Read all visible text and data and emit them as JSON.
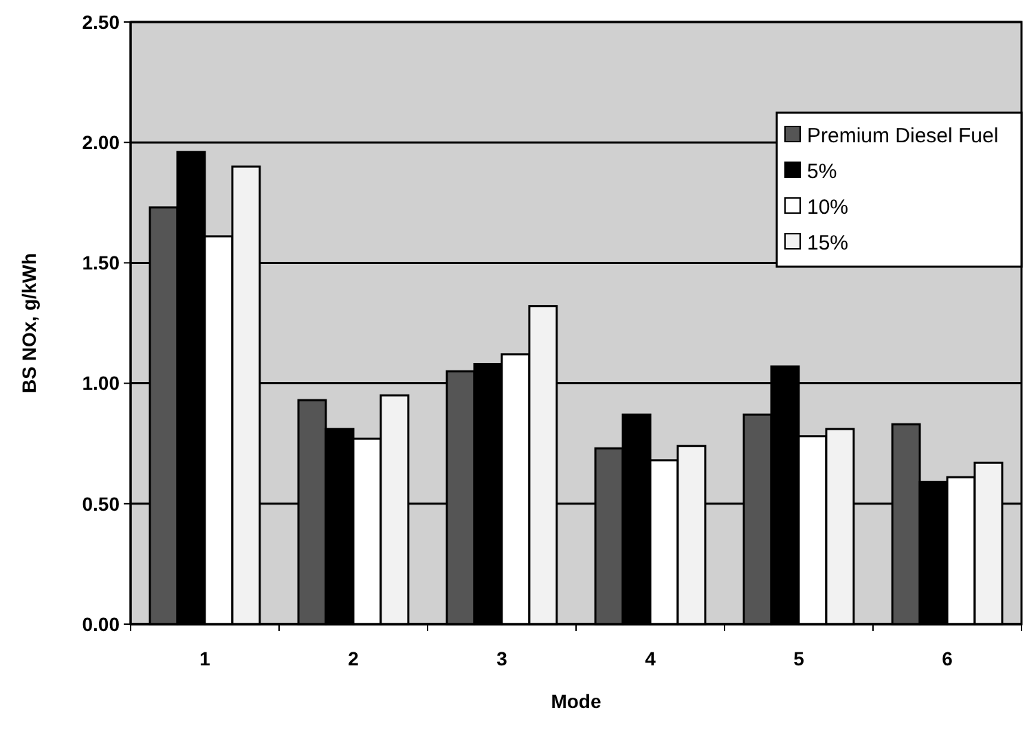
{
  "chart_data": {
    "type": "bar",
    "xlabel": "Mode",
    "ylabel": "BS NOx, g/kWh",
    "categories": [
      "1",
      "2",
      "3",
      "4",
      "5",
      "6"
    ],
    "series": [
      {
        "name": "Premium Diesel Fuel",
        "color": "#555555",
        "values": [
          1.73,
          0.93,
          1.05,
          0.73,
          0.87,
          0.83
        ]
      },
      {
        "name": "5%",
        "color": "#000000",
        "values": [
          1.96,
          0.81,
          1.08,
          0.87,
          1.07,
          0.59
        ]
      },
      {
        "name": "10%",
        "color": "#ffffff",
        "values": [
          1.61,
          0.77,
          1.12,
          0.68,
          0.78,
          0.61
        ]
      },
      {
        "name": "15%",
        "color": "#f2f2f2",
        "values": [
          1.9,
          0.95,
          1.32,
          0.74,
          0.81,
          0.67
        ]
      }
    ],
    "ylim": [
      0,
      2.5
    ],
    "yticks": [
      {
        "value": 0,
        "label": "0.00"
      },
      {
        "value": 0.5,
        "label": "0.50"
      },
      {
        "value": 1,
        "label": "1.00"
      },
      {
        "value": 1.5,
        "label": "1.50"
      },
      {
        "value": 2,
        "label": "2.00"
      },
      {
        "value": 2.5,
        "label": "2.50"
      }
    ],
    "grid": "y",
    "legend": "top right"
  }
}
